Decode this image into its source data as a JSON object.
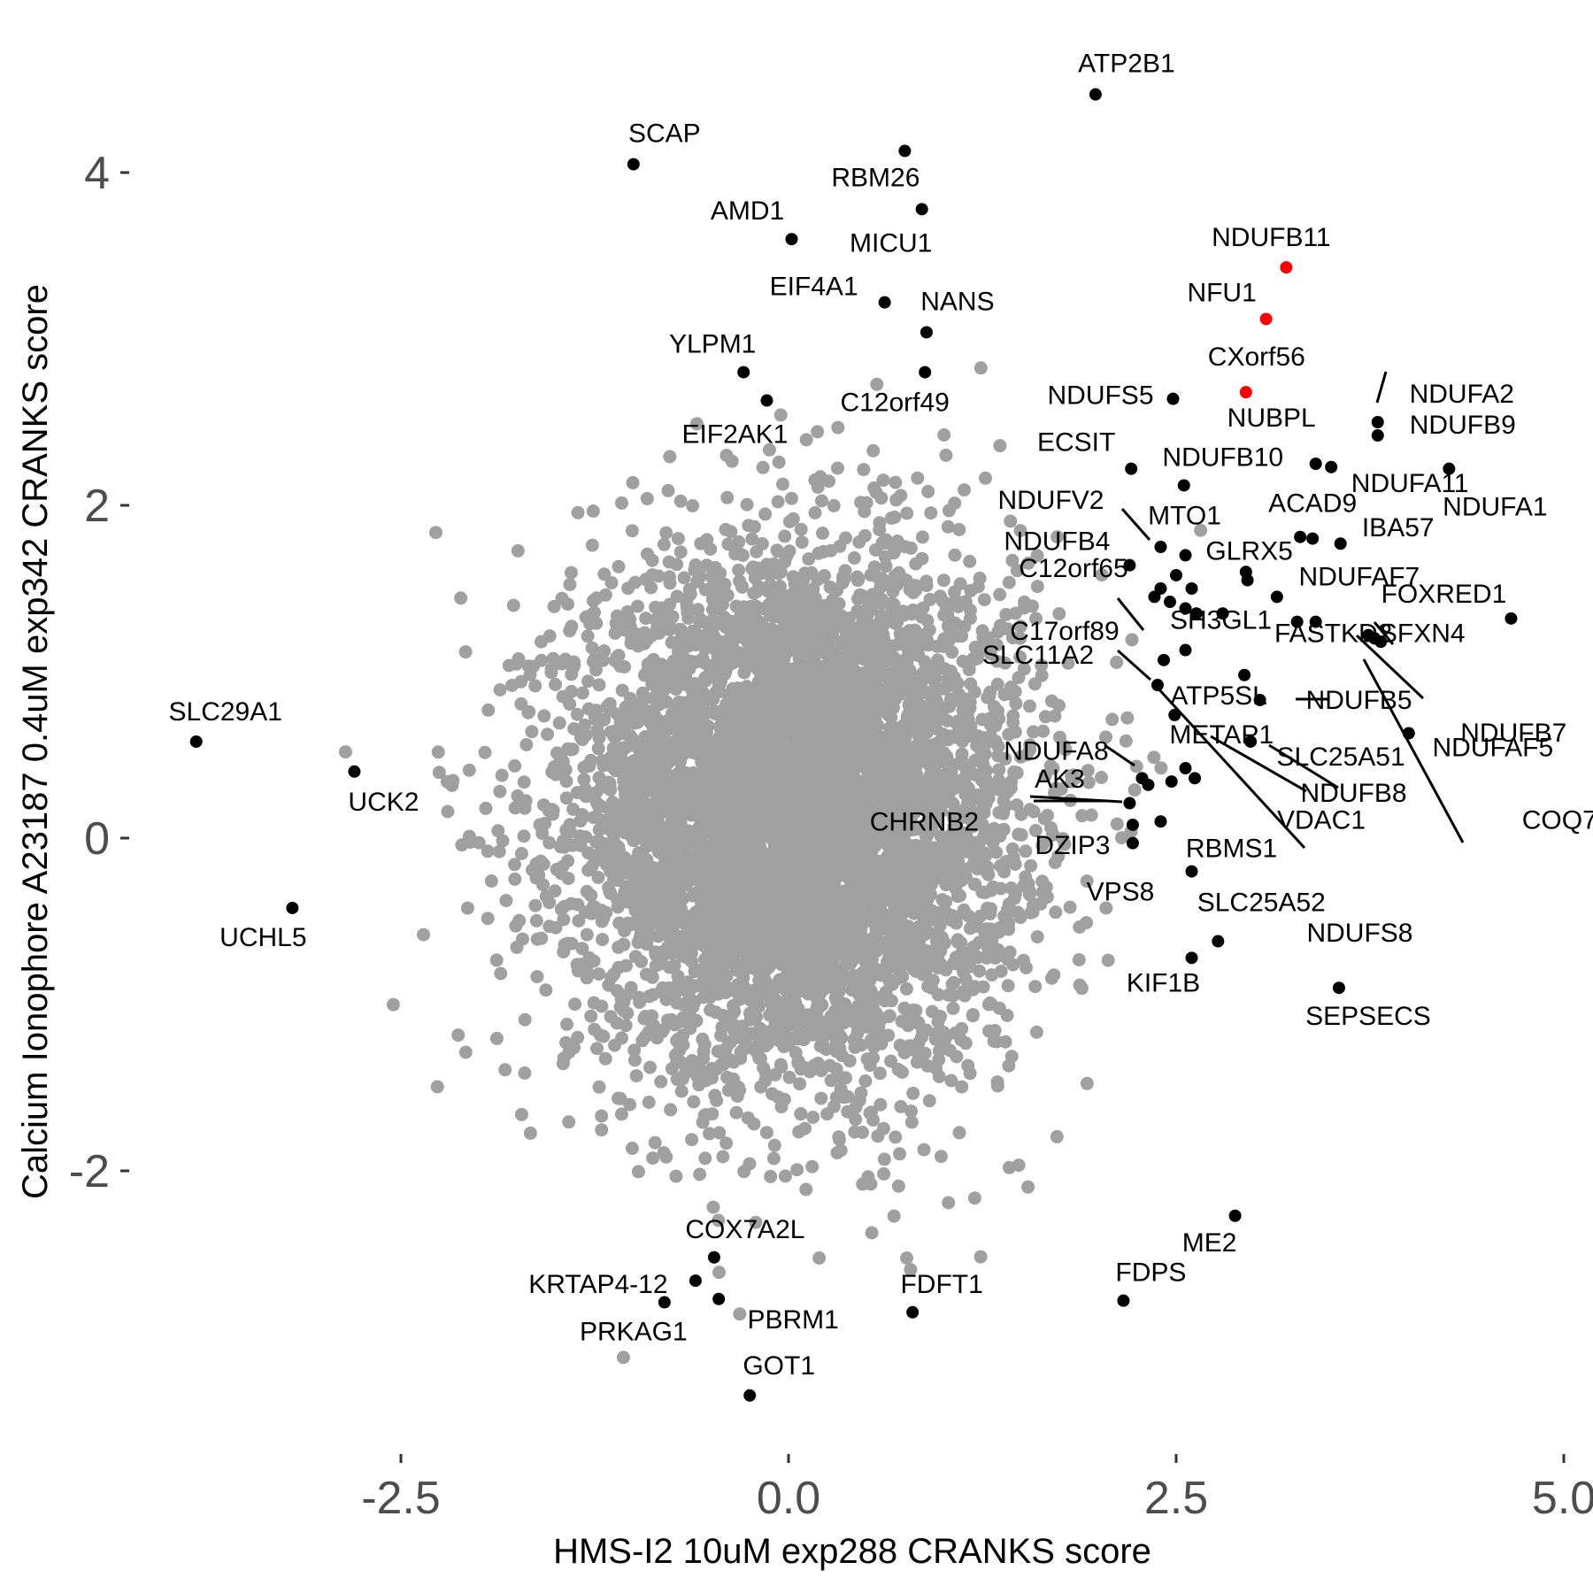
{
  "chart_data": {
    "type": "scatter",
    "xlabel": "HMS-I2 10uM exp288 CRANKS score",
    "ylabel": "Calcium Ionophore A23187 0.4uM exp342 CRANKS score",
    "xlim": [
      -4.0,
      5.0
    ],
    "ylim": [
      -3.7,
      4.5
    ],
    "xticks": [
      {
        "value": -2.5,
        "label": "-2.5"
      },
      {
        "value": 0.0,
        "label": "0.0"
      },
      {
        "value": 2.5,
        "label": "2.5"
      },
      {
        "value": 5.0,
        "label": "5.0"
      }
    ],
    "yticks": [
      {
        "value": 4,
        "label": "4"
      },
      {
        "value": 2,
        "label": "2"
      },
      {
        "value": 0,
        "label": "0"
      },
      {
        "value": -2,
        "label": "-2"
      }
    ],
    "grid": false,
    "legend": "none",
    "colors": {
      "background": "#ffffff",
      "background_points": "#a0a0a0",
      "highlighted": "#000000",
      "special": "#ff0000",
      "tick_label": "#4d4d4d"
    },
    "background_cloud": {
      "description_of_distribution": "approximately bivariate normal, several thousand genes",
      "x_center": 0.05,
      "x_sd": 0.72,
      "y_center": 0.15,
      "y_sd": 0.78,
      "color": "#a0a0a0"
    },
    "labeled_points": [
      {
        "gene": "ATP2B1",
        "x": 1.98,
        "y": 4.47,
        "color": "#000000"
      },
      {
        "gene": "SCAP",
        "x": -1.0,
        "y": 4.05,
        "color": "#000000"
      },
      {
        "gene": "RBM26",
        "x": 0.75,
        "y": 4.13,
        "color": "#000000"
      },
      {
        "gene": "AMD1",
        "x": 0.02,
        "y": 3.6,
        "color": "#000000"
      },
      {
        "gene": "MICU1",
        "x": 0.86,
        "y": 3.78,
        "color": "#000000"
      },
      {
        "gene": "EIF4A1",
        "x": 0.62,
        "y": 3.22,
        "color": "#000000"
      },
      {
        "gene": "NANS",
        "x": 0.89,
        "y": 3.04,
        "color": "#000000"
      },
      {
        "gene": "NDUFB11",
        "x": 3.21,
        "y": 3.43,
        "color": "#ff0000"
      },
      {
        "gene": "NFU1",
        "x": 3.08,
        "y": 3.12,
        "color": "#ff0000"
      },
      {
        "gene": "YLPM1",
        "x": -0.29,
        "y": 2.8,
        "color": "#000000"
      },
      {
        "gene": "C12orf49",
        "x": 0.88,
        "y": 2.8,
        "color": "#000000"
      },
      {
        "gene": "CXorf56",
        "x": 2.95,
        "y": 2.68,
        "color": "#ff0000"
      },
      {
        "gene": "EIF2AK1",
        "x": -0.14,
        "y": 2.63,
        "color": "#000000"
      },
      {
        "gene": "NDUFS5",
        "x": 2.48,
        "y": 2.64,
        "color": "#000000"
      },
      {
        "gene": "NDUFA2",
        "x": 3.8,
        "y": 2.5,
        "color": "#000000"
      },
      {
        "gene": "NDUFB9",
        "x": 3.8,
        "y": 2.42,
        "color": "#000000"
      },
      {
        "gene": "NUBPL",
        "x": 3.4,
        "y": 2.25,
        "color": "#000000"
      },
      {
        "gene": "NDUFA11",
        "x": 3.5,
        "y": 2.23,
        "color": "#000000"
      },
      {
        "gene": "NDUFA1",
        "x": 4.26,
        "y": 2.22,
        "color": "#000000"
      },
      {
        "gene": "ECSIT",
        "x": 2.21,
        "y": 2.22,
        "color": "#000000"
      },
      {
        "gene": "NDUFB10",
        "x": 2.55,
        "y": 2.12,
        "color": "#000000"
      },
      {
        "gene": "NDUFV2",
        "x": 2.4,
        "y": 1.75,
        "color": "#000000"
      },
      {
        "gene": "MTO1",
        "x": 2.56,
        "y": 1.7,
        "color": "#000000"
      },
      {
        "gene": "ACAD9",
        "x": 3.3,
        "y": 1.81,
        "color": "#000000"
      },
      {
        "gene": "IBA57",
        "x": 3.56,
        "y": 1.77,
        "color": "#000000"
      },
      {
        "gene": "GLRX5",
        "x": 2.96,
        "y": 1.55,
        "color": "#000000"
      },
      {
        "gene": "NDUFB4",
        "x": 2.2,
        "y": 1.64,
        "color": "#000000"
      },
      {
        "gene": "NDUFAF7",
        "x": 3.15,
        "y": 1.45,
        "color": "#000000"
      },
      {
        "gene": "FOXRED1",
        "x": 4.66,
        "y": 1.32,
        "color": "#000000"
      },
      {
        "gene": "C12orf65",
        "x": 2.46,
        "y": 1.42,
        "color": "#000000"
      },
      {
        "gene": "SH3GL1",
        "x": 2.56,
        "y": 1.13,
        "color": "#000000"
      },
      {
        "gene": "SFXN4",
        "x": 3.74,
        "y": 1.22,
        "color": "#000000"
      },
      {
        "gene": "FASTKD2",
        "x": 3.4,
        "y": 1.3,
        "color": "#000000"
      },
      {
        "gene": "C17orf89",
        "x": 2.42,
        "y": 1.07,
        "color": "#000000"
      },
      {
        "gene": "ATP5SL",
        "x": 2.94,
        "y": 0.98,
        "color": "#000000"
      },
      {
        "gene": "NDUFB5",
        "x": 3.04,
        "y": 0.83,
        "color": "#000000"
      },
      {
        "gene": "NDUFB7",
        "x": 3.82,
        "y": 1.18,
        "color": "#000000"
      },
      {
        "gene": "SLC11A2",
        "x": 2.38,
        "y": 0.92,
        "color": "#000000"
      },
      {
        "gene": "NDUFAF5",
        "x": 4.0,
        "y": 0.63,
        "color": "#000000"
      },
      {
        "gene": "METAP1",
        "x": 2.49,
        "y": 0.74,
        "color": "#000000"
      },
      {
        "gene": "SLC25A51",
        "x": 2.98,
        "y": 0.58,
        "color": "#000000"
      },
      {
        "gene": "NDUFA8",
        "x": 2.28,
        "y": 0.36,
        "color": "#000000"
      },
      {
        "gene": "NDUFB8",
        "x": 2.56,
        "y": 0.42,
        "color": "#000000"
      },
      {
        "gene": "VDAC1",
        "x": 2.62,
        "y": 0.36,
        "color": "#000000"
      },
      {
        "gene": "AK3",
        "x": 2.32,
        "y": 0.32,
        "color": "#000000"
      },
      {
        "gene": "CHRNB2",
        "x": 2.2,
        "y": 0.21,
        "color": "#000000"
      },
      {
        "gene": "NDUFS8",
        "x": 2.4,
        "y": 0.1,
        "color": "#000000"
      },
      {
        "gene": "COQ7",
        "x": 3.78,
        "y": 1.2,
        "color": "#000000"
      },
      {
        "gene": "DZIP3",
        "x": 2.22,
        "y": 0.08,
        "color": "#000000"
      },
      {
        "gene": "VPS8",
        "x": 2.22,
        "y": -0.03,
        "color": "#000000"
      },
      {
        "gene": "RBMS1",
        "x": 2.6,
        "y": -0.2,
        "color": "#000000"
      },
      {
        "gene": "SLC25A52",
        "x": 2.77,
        "y": -0.62,
        "color": "#000000"
      },
      {
        "gene": "KIF1B",
        "x": 2.6,
        "y": -0.72,
        "color": "#000000"
      },
      {
        "gene": "SEPSECS",
        "x": 3.55,
        "y": -0.9,
        "color": "#000000"
      },
      {
        "gene": "SLC29A1",
        "x": -3.82,
        "y": 0.58,
        "color": "#000000"
      },
      {
        "gene": "UCK2",
        "x": -2.8,
        "y": 0.4,
        "color": "#000000"
      },
      {
        "gene": "UCHL5",
        "x": -3.2,
        "y": -0.42,
        "color": "#000000"
      },
      {
        "gene": "ME2",
        "x": 2.88,
        "y": -2.27,
        "color": "#000000"
      },
      {
        "gene": "FDPS",
        "x": 2.16,
        "y": -2.78,
        "color": "#000000"
      },
      {
        "gene": "COX7A2L",
        "x": -0.48,
        "y": -2.52,
        "color": "#000000"
      },
      {
        "gene": "KRTAP4-12",
        "x": -0.6,
        "y": -2.66,
        "color": "#000000"
      },
      {
        "gene": "PBRM1",
        "x": -0.45,
        "y": -2.77,
        "color": "#000000"
      },
      {
        "gene": "PRKAG1",
        "x": -0.8,
        "y": -2.79,
        "color": "#000000"
      },
      {
        "gene": "FDFT1",
        "x": 0.8,
        "y": -2.85,
        "color": "#000000"
      },
      {
        "gene": "GOT1",
        "x": -0.25,
        "y": -3.35,
        "color": "#000000"
      }
    ],
    "unlabeled_highlighted_points": [
      {
        "x": 3.38,
        "y": 1.8
      },
      {
        "x": 3.28,
        "y": 1.3
      },
      {
        "x": 2.56,
        "y": 1.38
      },
      {
        "x": 2.63,
        "y": 1.35
      },
      {
        "x": 2.4,
        "y": 1.5
      },
      {
        "x": 2.6,
        "y": 1.5
      },
      {
        "x": 2.36,
        "y": 1.45
      },
      {
        "x": 2.8,
        "y": 1.35
      },
      {
        "x": 2.5,
        "y": 1.58
      },
      {
        "x": 2.95,
        "y": 1.6
      },
      {
        "x": 2.47,
        "y": 0.34
      }
    ]
  }
}
